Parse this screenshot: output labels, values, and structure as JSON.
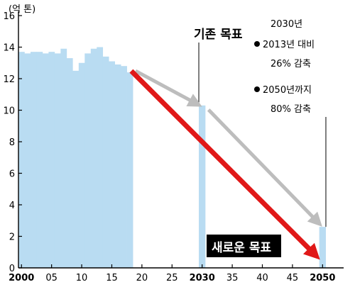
{
  "chart_data": {
    "type": "bar",
    "y_unit_label": "(억 톤)",
    "ylim": [
      0,
      16
    ],
    "y_ticks": [
      "0",
      "2",
      "4",
      "6",
      "8",
      "10",
      "12",
      "14",
      "16"
    ],
    "x_range": [
      1999.5,
      2053.5
    ],
    "x_ticks": [
      {
        "year": 2000,
        "label": "2000",
        "bold": true
      },
      {
        "year": 2005,
        "label": "05",
        "bold": false
      },
      {
        "year": 2010,
        "label": "10",
        "bold": false
      },
      {
        "year": 2015,
        "label": "15",
        "bold": false
      },
      {
        "year": 2020,
        "label": "20",
        "bold": false
      },
      {
        "year": 2025,
        "label": "25",
        "bold": false
      },
      {
        "year": 2030,
        "label": "2030",
        "bold": true
      },
      {
        "year": 2035,
        "label": "35",
        "bold": false
      },
      {
        "year": 2040,
        "label": "40",
        "bold": false
      },
      {
        "year": 2045,
        "label": "45",
        "bold": false
      },
      {
        "year": 2050,
        "label": "2050",
        "bold": true
      }
    ],
    "historical": {
      "years": [
        2000,
        2001,
        2002,
        2003,
        2004,
        2005,
        2006,
        2007,
        2008,
        2009,
        2010,
        2011,
        2012,
        2013,
        2014,
        2015,
        2016,
        2017,
        2018
      ],
      "values": [
        13.7,
        13.6,
        13.7,
        13.7,
        13.6,
        13.7,
        13.6,
        13.9,
        13.3,
        12.5,
        13.0,
        13.6,
        13.9,
        14.0,
        13.4,
        13.1,
        12.9,
        12.8,
        12.4
      ]
    },
    "targets": [
      {
        "year": 2030,
        "value": 10.3
      },
      {
        "year": 2050,
        "value": 2.6
      }
    ],
    "colors": {
      "bar": "#b9dcf2",
      "old_path": "#bdbdbd",
      "new_path": "#e01818",
      "axis": "#000000",
      "label_bg": "#000000",
      "label_fg": "#ffffff"
    },
    "annotations": {
      "old_target": "기존 목표",
      "target_2030_title": "2030년",
      "target_2030_line1": "2013년 대비",
      "target_2030_line2": "26% 감축",
      "target_2050_line1": "2050년까지",
      "target_2050_line2": "80% 감축",
      "new_target": "새로운 목표"
    }
  }
}
